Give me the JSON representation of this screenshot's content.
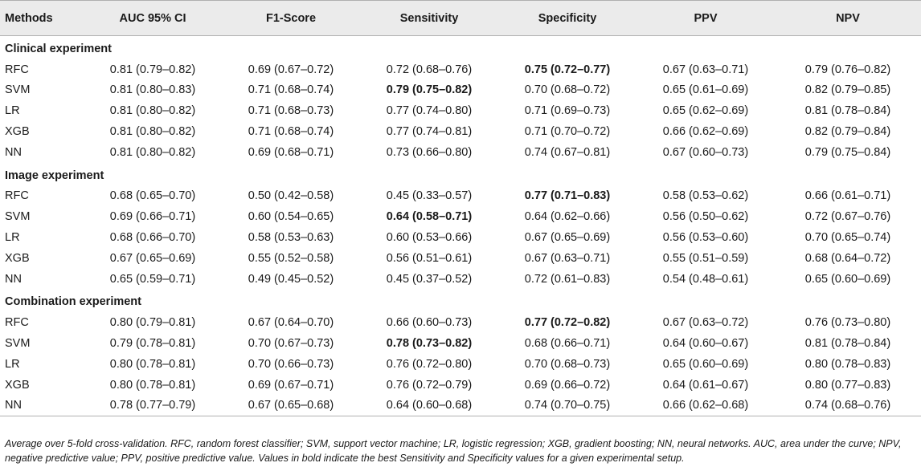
{
  "chart_data": {
    "type": "table",
    "columns": [
      "Methods",
      "AUC 95% CI",
      "F1-Score",
      "Sensitivity",
      "Specificity",
      "PPV",
      "NPV"
    ],
    "sections": [
      {
        "title": "Clinical experiment",
        "rows": [
          {
            "method": "RFC",
            "cells": [
              "0.81 (0.79–0.82)",
              "0.69 (0.67–0.72)",
              "0.72 (0.68–0.76)",
              "0.75 (0.72–0.77)",
              "0.67 (0.63–0.71)",
              "0.79 (0.76–0.82)"
            ],
            "bold": [
              3
            ]
          },
          {
            "method": "SVM",
            "cells": [
              "0.81 (0.80–0.83)",
              "0.71 (0.68–0.74)",
              "0.79 (0.75–0.82)",
              "0.70 (0.68–0.72)",
              "0.65 (0.61–0.69)",
              "0.82 (0.79–0.85)"
            ],
            "bold": [
              2
            ]
          },
          {
            "method": "LR",
            "cells": [
              "0.81 (0.80–0.82)",
              "0.71 (0.68–0.73)",
              "0.77 (0.74–0.80)",
              "0.71 (0.69–0.73)",
              "0.65 (0.62–0.69)",
              "0.81 (0.78–0.84)"
            ],
            "bold": []
          },
          {
            "method": "XGB",
            "cells": [
              "0.81 (0.80–0.82)",
              "0.71 (0.68–0.74)",
              "0.77 (0.74–0.81)",
              "0.71 (0.70–0.72)",
              "0.66 (0.62–0.69)",
              "0.82 (0.79–0.84)"
            ],
            "bold": []
          },
          {
            "method": "NN",
            "cells": [
              "0.81 (0.80–0.82)",
              "0.69 (0.68–0.71)",
              "0.73 (0.66–0.80)",
              "0.74 (0.67–0.81)",
              "0.67 (0.60–0.73)",
              "0.79 (0.75–0.84)"
            ],
            "bold": []
          }
        ]
      },
      {
        "title": "Image experiment",
        "rows": [
          {
            "method": "RFC",
            "cells": [
              "0.68 (0.65–0.70)",
              "0.50 (0.42–0.58)",
              "0.45 (0.33–0.57)",
              "0.77 (0.71–0.83)",
              "0.58 (0.53–0.62)",
              "0.66 (0.61–0.71)"
            ],
            "bold": [
              3
            ]
          },
          {
            "method": "SVM",
            "cells": [
              "0.69 (0.66–0.71)",
              "0.60 (0.54–0.65)",
              "0.64 (0.58–0.71)",
              "0.64 (0.62–0.66)",
              "0.56 (0.50–0.62)",
              "0.72 (0.67–0.76)"
            ],
            "bold": [
              2
            ]
          },
          {
            "method": "LR",
            "cells": [
              "0.68 (0.66–0.70)",
              "0.58 (0.53–0.63)",
              "0.60 (0.53–0.66)",
              "0.67 (0.65–0.69)",
              "0.56 (0.53–0.60)",
              "0.70 (0.65–0.74)"
            ],
            "bold": []
          },
          {
            "method": "XGB",
            "cells": [
              "0.67 (0.65–0.69)",
              "0.55 (0.52–0.58)",
              "0.56 (0.51–0.61)",
              "0.67 (0.63–0.71)",
              "0.55 (0.51–0.59)",
              "0.68 (0.64–0.72)"
            ],
            "bold": []
          },
          {
            "method": "NN",
            "cells": [
              "0.65 (0.59–0.71)",
              "0.49 (0.45–0.52)",
              "0.45 (0.37–0.52)",
              "0.72 (0.61–0.83)",
              "0.54 (0.48–0.61)",
              "0.65 (0.60–0.69)"
            ],
            "bold": []
          }
        ]
      },
      {
        "title": "Combination experiment",
        "rows": [
          {
            "method": "RFC",
            "cells": [
              "0.80 (0.79–0.81)",
              "0.67 (0.64–0.70)",
              "0.66 (0.60–0.73)",
              "0.77 (0.72–0.82)",
              "0.67 (0.63–0.72)",
              "0.76 (0.73–0.80)"
            ],
            "bold": [
              3
            ]
          },
          {
            "method": "SVM",
            "cells": [
              "0.79 (0.78–0.81)",
              "0.70 (0.67–0.73)",
              "0.78 (0.73–0.82)",
              "0.68 (0.66–0.71)",
              "0.64 (0.60–0.67)",
              "0.81 (0.78–0.84)"
            ],
            "bold": [
              2
            ]
          },
          {
            "method": "LR",
            "cells": [
              "0.80 (0.78–0.81)",
              "0.70 (0.66–0.73)",
              "0.76 (0.72–0.80)",
              "0.70 (0.68–0.73)",
              "0.65 (0.60–0.69)",
              "0.80 (0.78–0.83)"
            ],
            "bold": []
          },
          {
            "method": "XGB",
            "cells": [
              "0.80 (0.78–0.81)",
              "0.69 (0.67–0.71)",
              "0.76 (0.72–0.79)",
              "0.69 (0.66–0.72)",
              "0.64 (0.61–0.67)",
              "0.80 (0.77–0.83)"
            ],
            "bold": []
          },
          {
            "method": "NN",
            "cells": [
              "0.78 (0.77–0.79)",
              "0.67 (0.65–0.68)",
              "0.64 (0.60–0.68)",
              "0.74 (0.70–0.75)",
              "0.66 (0.62–0.68)",
              "0.74 (0.68–0.76)"
            ],
            "bold": []
          }
        ]
      }
    ]
  },
  "footnote": "Average over 5-fold cross-validation. RFC, random forest classifier; SVM, support vector machine; LR, logistic regression; XGB, gradient boosting; NN, neural networks. AUC, area under the curve; NPV, negative predictive value; PPV, positive predictive value. Values in bold indicate the best Sensitivity and Specificity values for a given experimental setup.",
  "colors": {
    "header_bg": "#ebebeb",
    "rule": "#b0b0b0",
    "text": "#1a1a1a"
  }
}
